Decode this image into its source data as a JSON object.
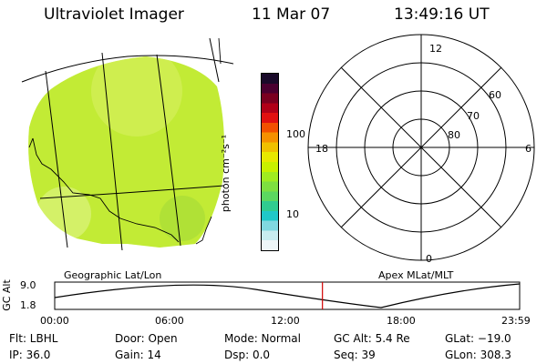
{
  "header": {
    "title": "Ultraviolet Imager",
    "date": "11 Mar 07",
    "time": "13:49:16 UT"
  },
  "colorbar": {
    "unit_label": "photon cm⁻²s⁻¹",
    "ticks": [
      "100",
      "10"
    ],
    "colors": [
      "#1a0a2a",
      "#4a0030",
      "#7a0020",
      "#b00018",
      "#e01010",
      "#f25000",
      "#f59000",
      "#f0c000",
      "#e8e800",
      "#c8f000",
      "#a0ec20",
      "#7ee040",
      "#5cd860",
      "#30cc90",
      "#20c8c8",
      "#80d8e0",
      "#c8ecf0",
      "#eef6f8"
    ]
  },
  "map": {
    "label": "Geographic Lat/Lon",
    "fill_color": "#c9ee3a"
  },
  "polar": {
    "label": "Apex MLat/MLT",
    "mlt_labels": {
      "top": "12",
      "left": "18",
      "right": "6",
      "bottom": "0"
    },
    "lat_labels": [
      "60",
      "70",
      "80"
    ]
  },
  "altitude_plot": {
    "y_axis_label": "GC Alt",
    "y_ticks": [
      "9.0",
      "1.8"
    ],
    "x_ticks": [
      "00:00",
      "06:00",
      "12:00",
      "18:00",
      "23:59"
    ],
    "current_time_marker_hours": 13.82,
    "marker_color": "#d00000"
  },
  "info": {
    "filter": "Flt: LBHL",
    "ip": "IP: 36.0",
    "door": "Door: Open",
    "gain": "Gain: 14",
    "mode": "Mode: Normal",
    "dsp": "Dsp:    0.0",
    "gc_alt": "GC Alt: 5.4 Re",
    "seq": "Seq: 39",
    "glat": "GLat: −19.0",
    "glon": "GLon: 308.3"
  }
}
